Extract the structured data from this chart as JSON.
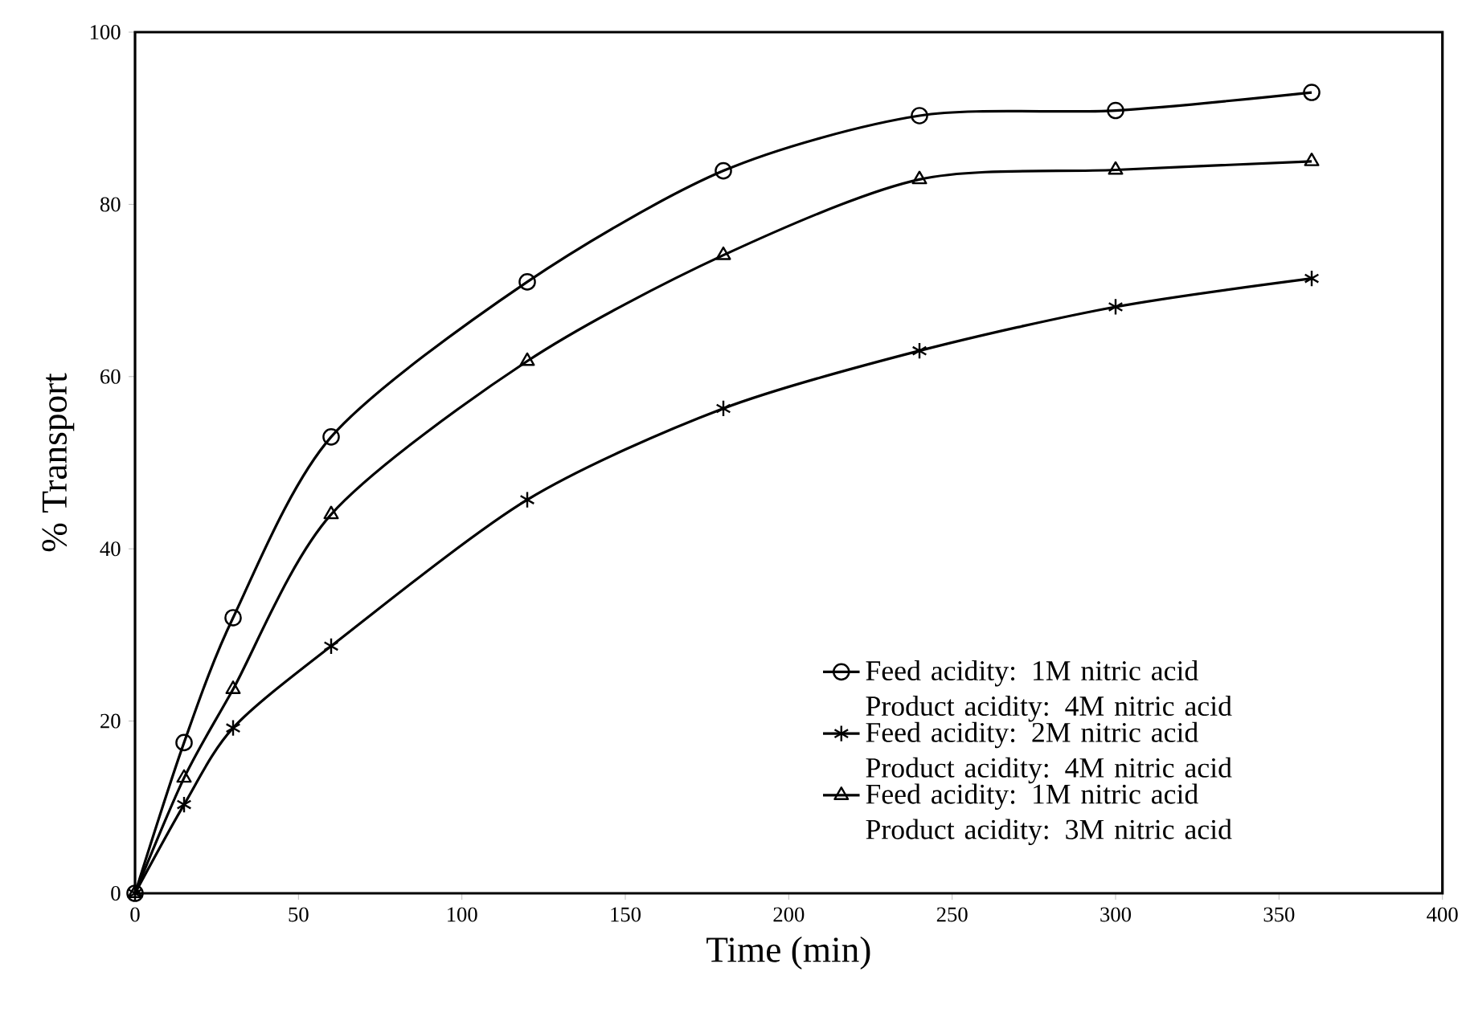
{
  "chart_data": {
    "type": "line",
    "xlabel": "Time (min)",
    "ylabel": "% Transport",
    "xlim": [
      0,
      400
    ],
    "ylim": [
      0,
      100
    ],
    "xticks": [
      0,
      50,
      100,
      150,
      200,
      250,
      300,
      350,
      400
    ],
    "yticks": [
      0,
      20,
      40,
      60,
      80,
      100
    ],
    "grid": false,
    "legend": "bottom right",
    "line_style": "solid",
    "series": [
      {
        "name": "Feed acidity: 1M nitric acid Product acidity: 4M nitric acid",
        "color": "#000000",
        "marker": "circle",
        "x": [
          0,
          15,
          30,
          60,
          120,
          180,
          240,
          300,
          360
        ],
        "values": [
          0,
          17.5,
          32,
          53,
          71,
          83.9,
          90.3,
          90.9,
          93
        ]
      },
      {
        "name": "Feed acidity: 2M nitric acid Product acidity: 4M nitric acid",
        "color": "#000000",
        "marker": "cross",
        "x": [
          0,
          15,
          30,
          60,
          120,
          180,
          240,
          300,
          360
        ],
        "values": [
          0,
          10.3,
          19.2,
          28.7,
          45.7,
          56.3,
          63,
          68.1,
          71.4
        ]
      },
      {
        "name": "Feed acidity: 1M nitric acid Product acidity: 3M nitric acid",
        "color": "#000000",
        "marker": "triangle",
        "x": [
          0,
          15,
          30,
          60,
          120,
          180,
          240,
          300,
          360
        ],
        "values": [
          0,
          13.4,
          23.7,
          44,
          61.8,
          74.1,
          82.9,
          84,
          85
        ]
      }
    ]
  }
}
